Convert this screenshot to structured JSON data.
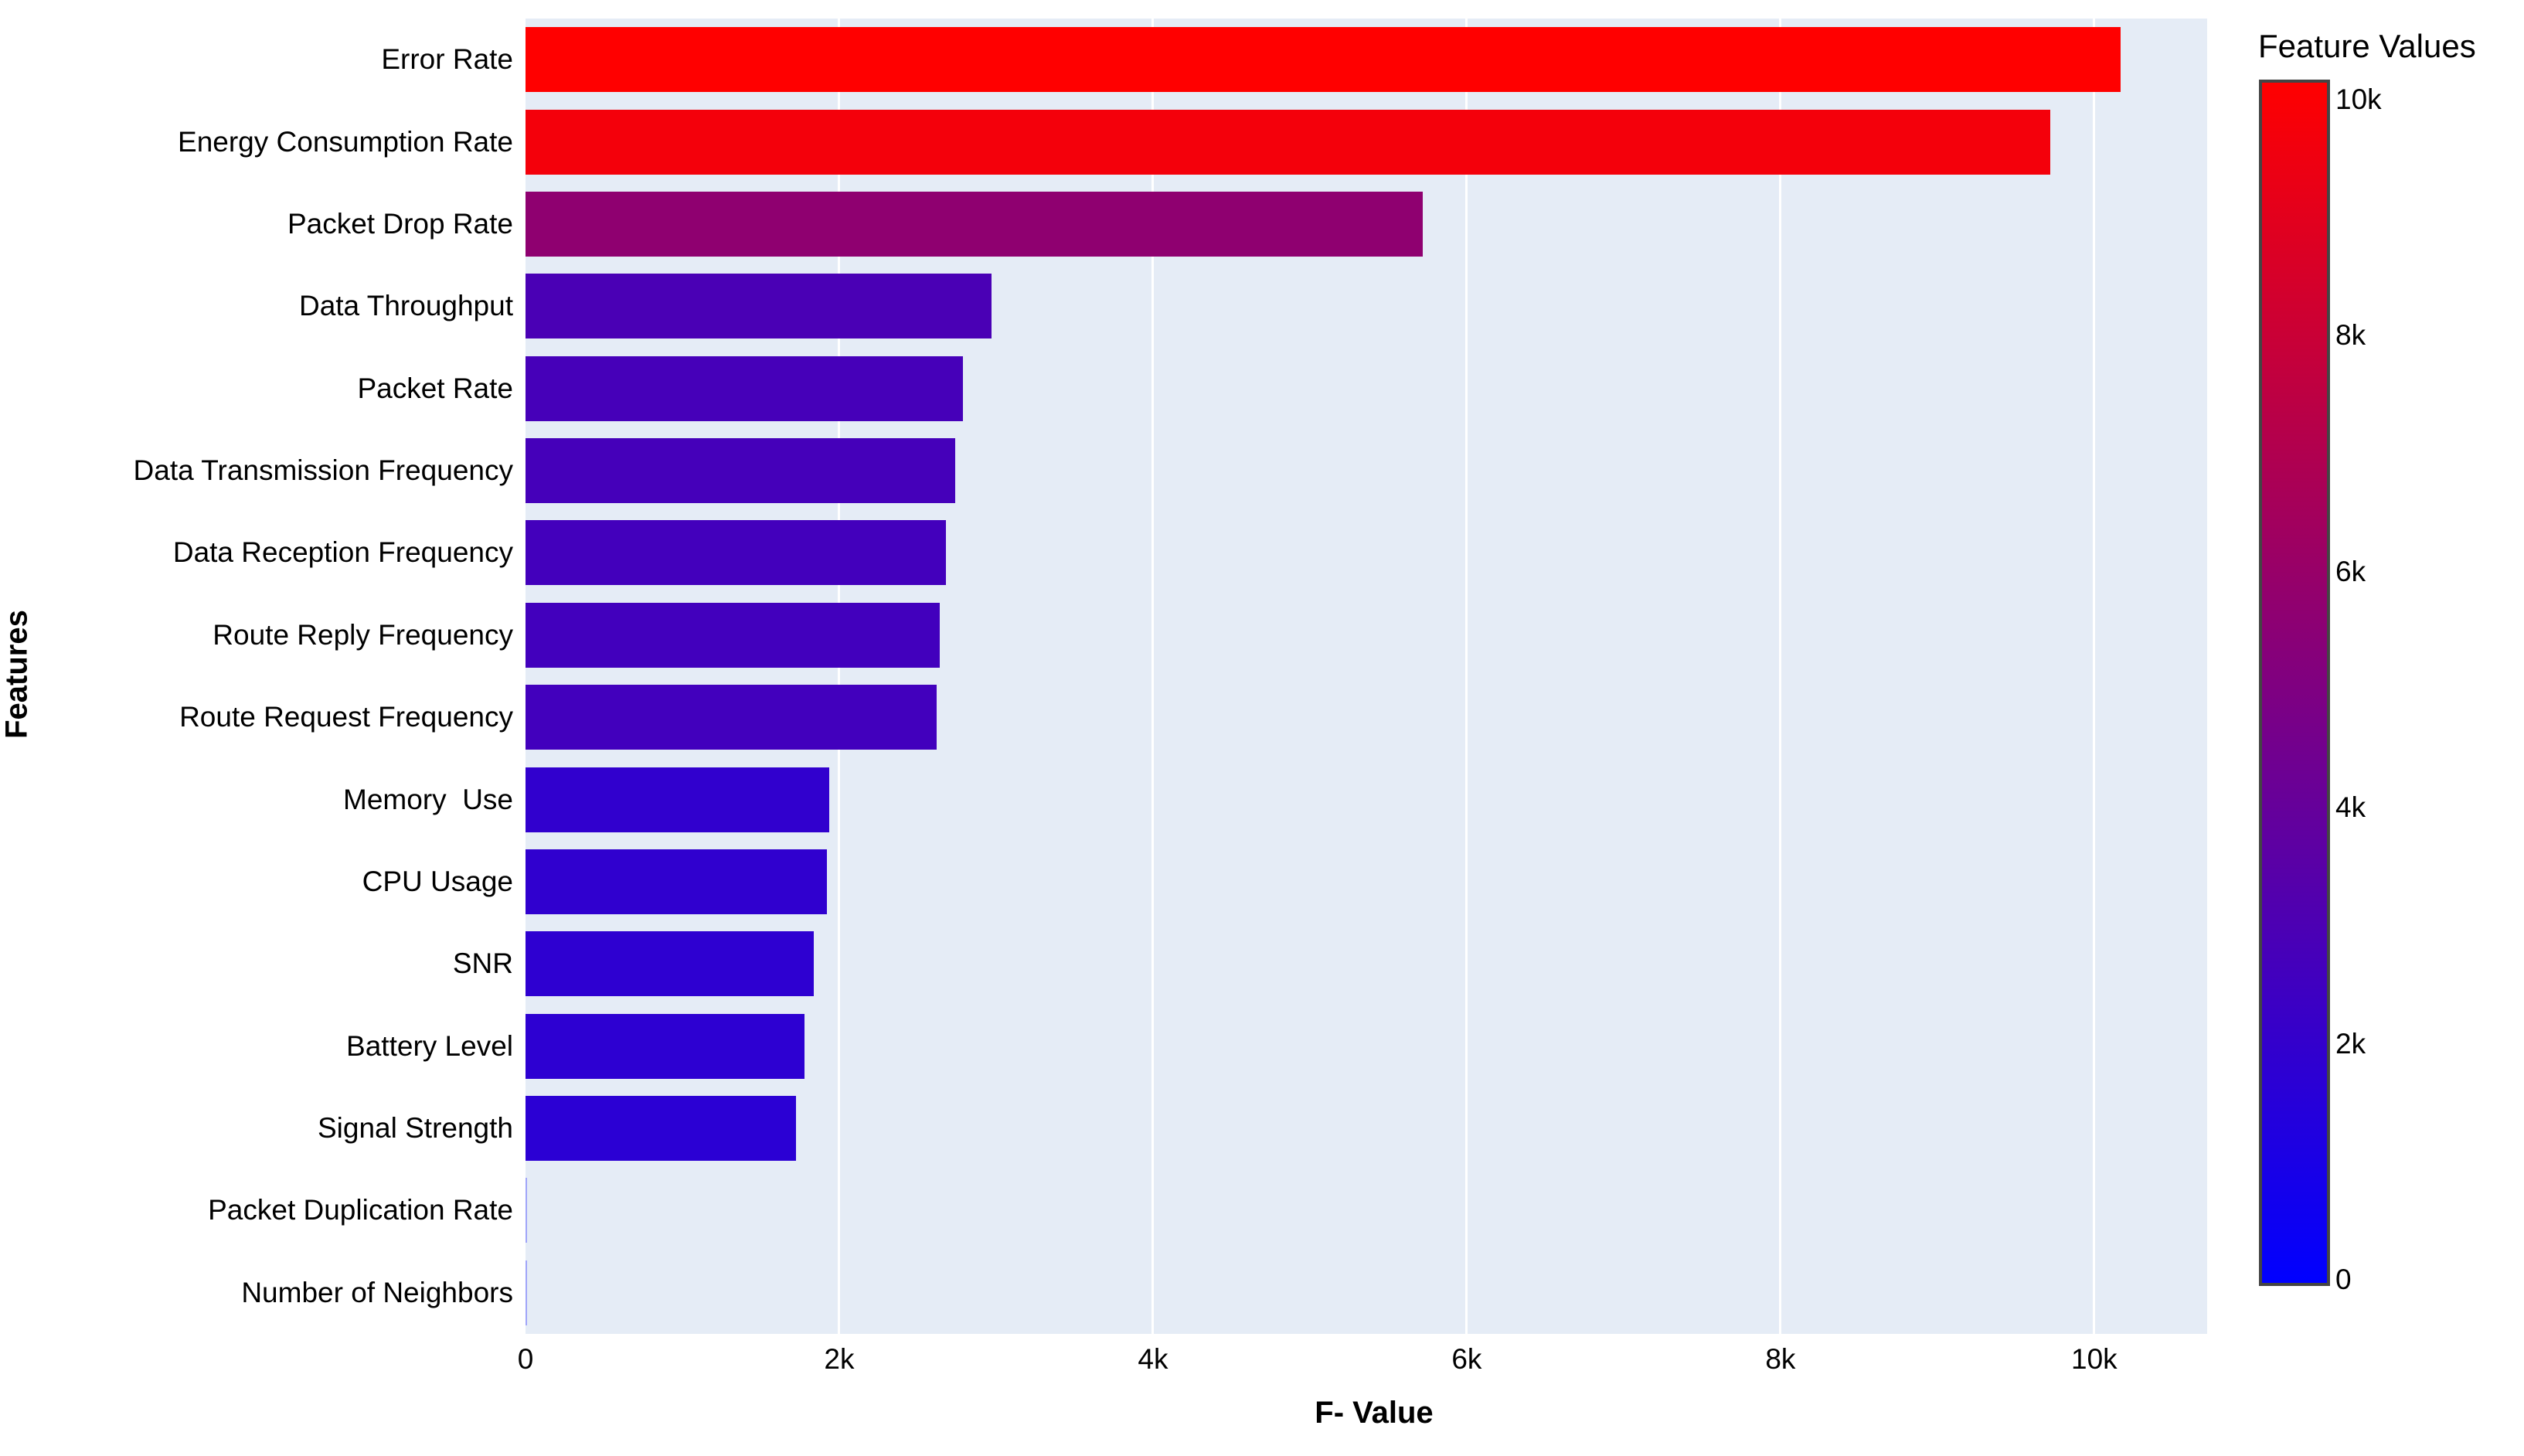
{
  "chart_data": {
    "type": "bar",
    "orientation": "horizontal",
    "xlabel": "F- Value",
    "ylabel": "Features",
    "colorbar_title": "Feature Values",
    "categories": [
      "Error Rate",
      "Energy Consumption Rate",
      "Packet Drop Rate",
      "Data Throughput",
      "Packet Rate",
      "Data Transmission Frequency",
      "Data Reception Frequency",
      "Route Reply Frequency",
      "Route Request Frequency",
      "Memory  Use",
      "CPU Usage",
      "SNR",
      "Battery Level",
      "Signal Strength",
      "Packet Duplication Rate",
      "Number of Neighbors"
    ],
    "values": [
      10170,
      9720,
      5720,
      2970,
      2790,
      2740,
      2680,
      2640,
      2620,
      1935,
      1920,
      1840,
      1780,
      1725,
      8,
      4
    ],
    "xlim": [
      0,
      10720
    ],
    "x_ticks": [
      {
        "value": 0,
        "label": "0"
      },
      {
        "value": 2000,
        "label": "2k"
      },
      {
        "value": 4000,
        "label": "4k"
      },
      {
        "value": 6000,
        "label": "6k"
      },
      {
        "value": 8000,
        "label": "8k"
      },
      {
        "value": 10000,
        "label": "10k"
      }
    ],
    "colorbar_ticks": [
      {
        "value": 0,
        "label": "0"
      },
      {
        "value": 2000,
        "label": "2k"
      },
      {
        "value": 4000,
        "label": "4k"
      },
      {
        "value": 6000,
        "label": "6k"
      },
      {
        "value": 8000,
        "label": "8k"
      },
      {
        "value": 10000,
        "label": "10k"
      }
    ],
    "color_scale": {
      "name": "bluered",
      "min": 0,
      "max": 10170,
      "low": "#0000FF",
      "high": "#FF0000"
    },
    "grid": "on",
    "legend": "none"
  },
  "colors": {
    "plot_background": "#E5ECF6",
    "gridline": "#FFFFFF",
    "bar_max_red": "#FF0000",
    "bar_min_blue": "#0000FF",
    "colorbar_border": "#444444",
    "text": "#000000"
  }
}
